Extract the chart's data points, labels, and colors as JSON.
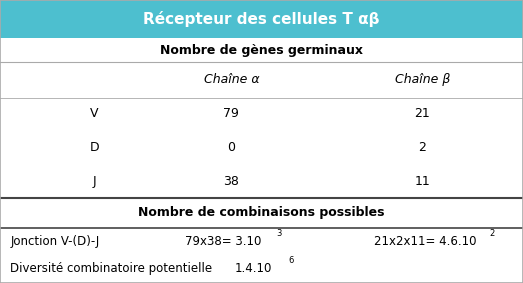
{
  "title": "Récepteur des cellules T αβ",
  "title_bg": "#4dbfcf",
  "title_color": "white",
  "section1_label": "Nombre de gènes germinaux",
  "col_headers": [
    "Chaîne α",
    "Chaîne β"
  ],
  "row_labels": [
    "V",
    "D",
    "J"
  ],
  "values_alpha": [
    "79",
    "0",
    "38"
  ],
  "values_beta": [
    "21",
    "2",
    "11"
  ],
  "section2_label": "Nombre de combinaisons possibles",
  "row3_label": "Jonction V-(D)-J",
  "row3_alpha_base": "79x38= 3.10",
  "row3_alpha_exp": "3",
  "row3_beta_base": "21x2x11= 4.6.10",
  "row3_beta_exp": "2",
  "row4_label": "Diversité combinatoire potentielle",
  "row4_val_base": "1.4.10",
  "row4_val_exp": "6",
  "table_bg": "white",
  "line_color": "#aaaaaa",
  "bold_line_color": "#444444"
}
